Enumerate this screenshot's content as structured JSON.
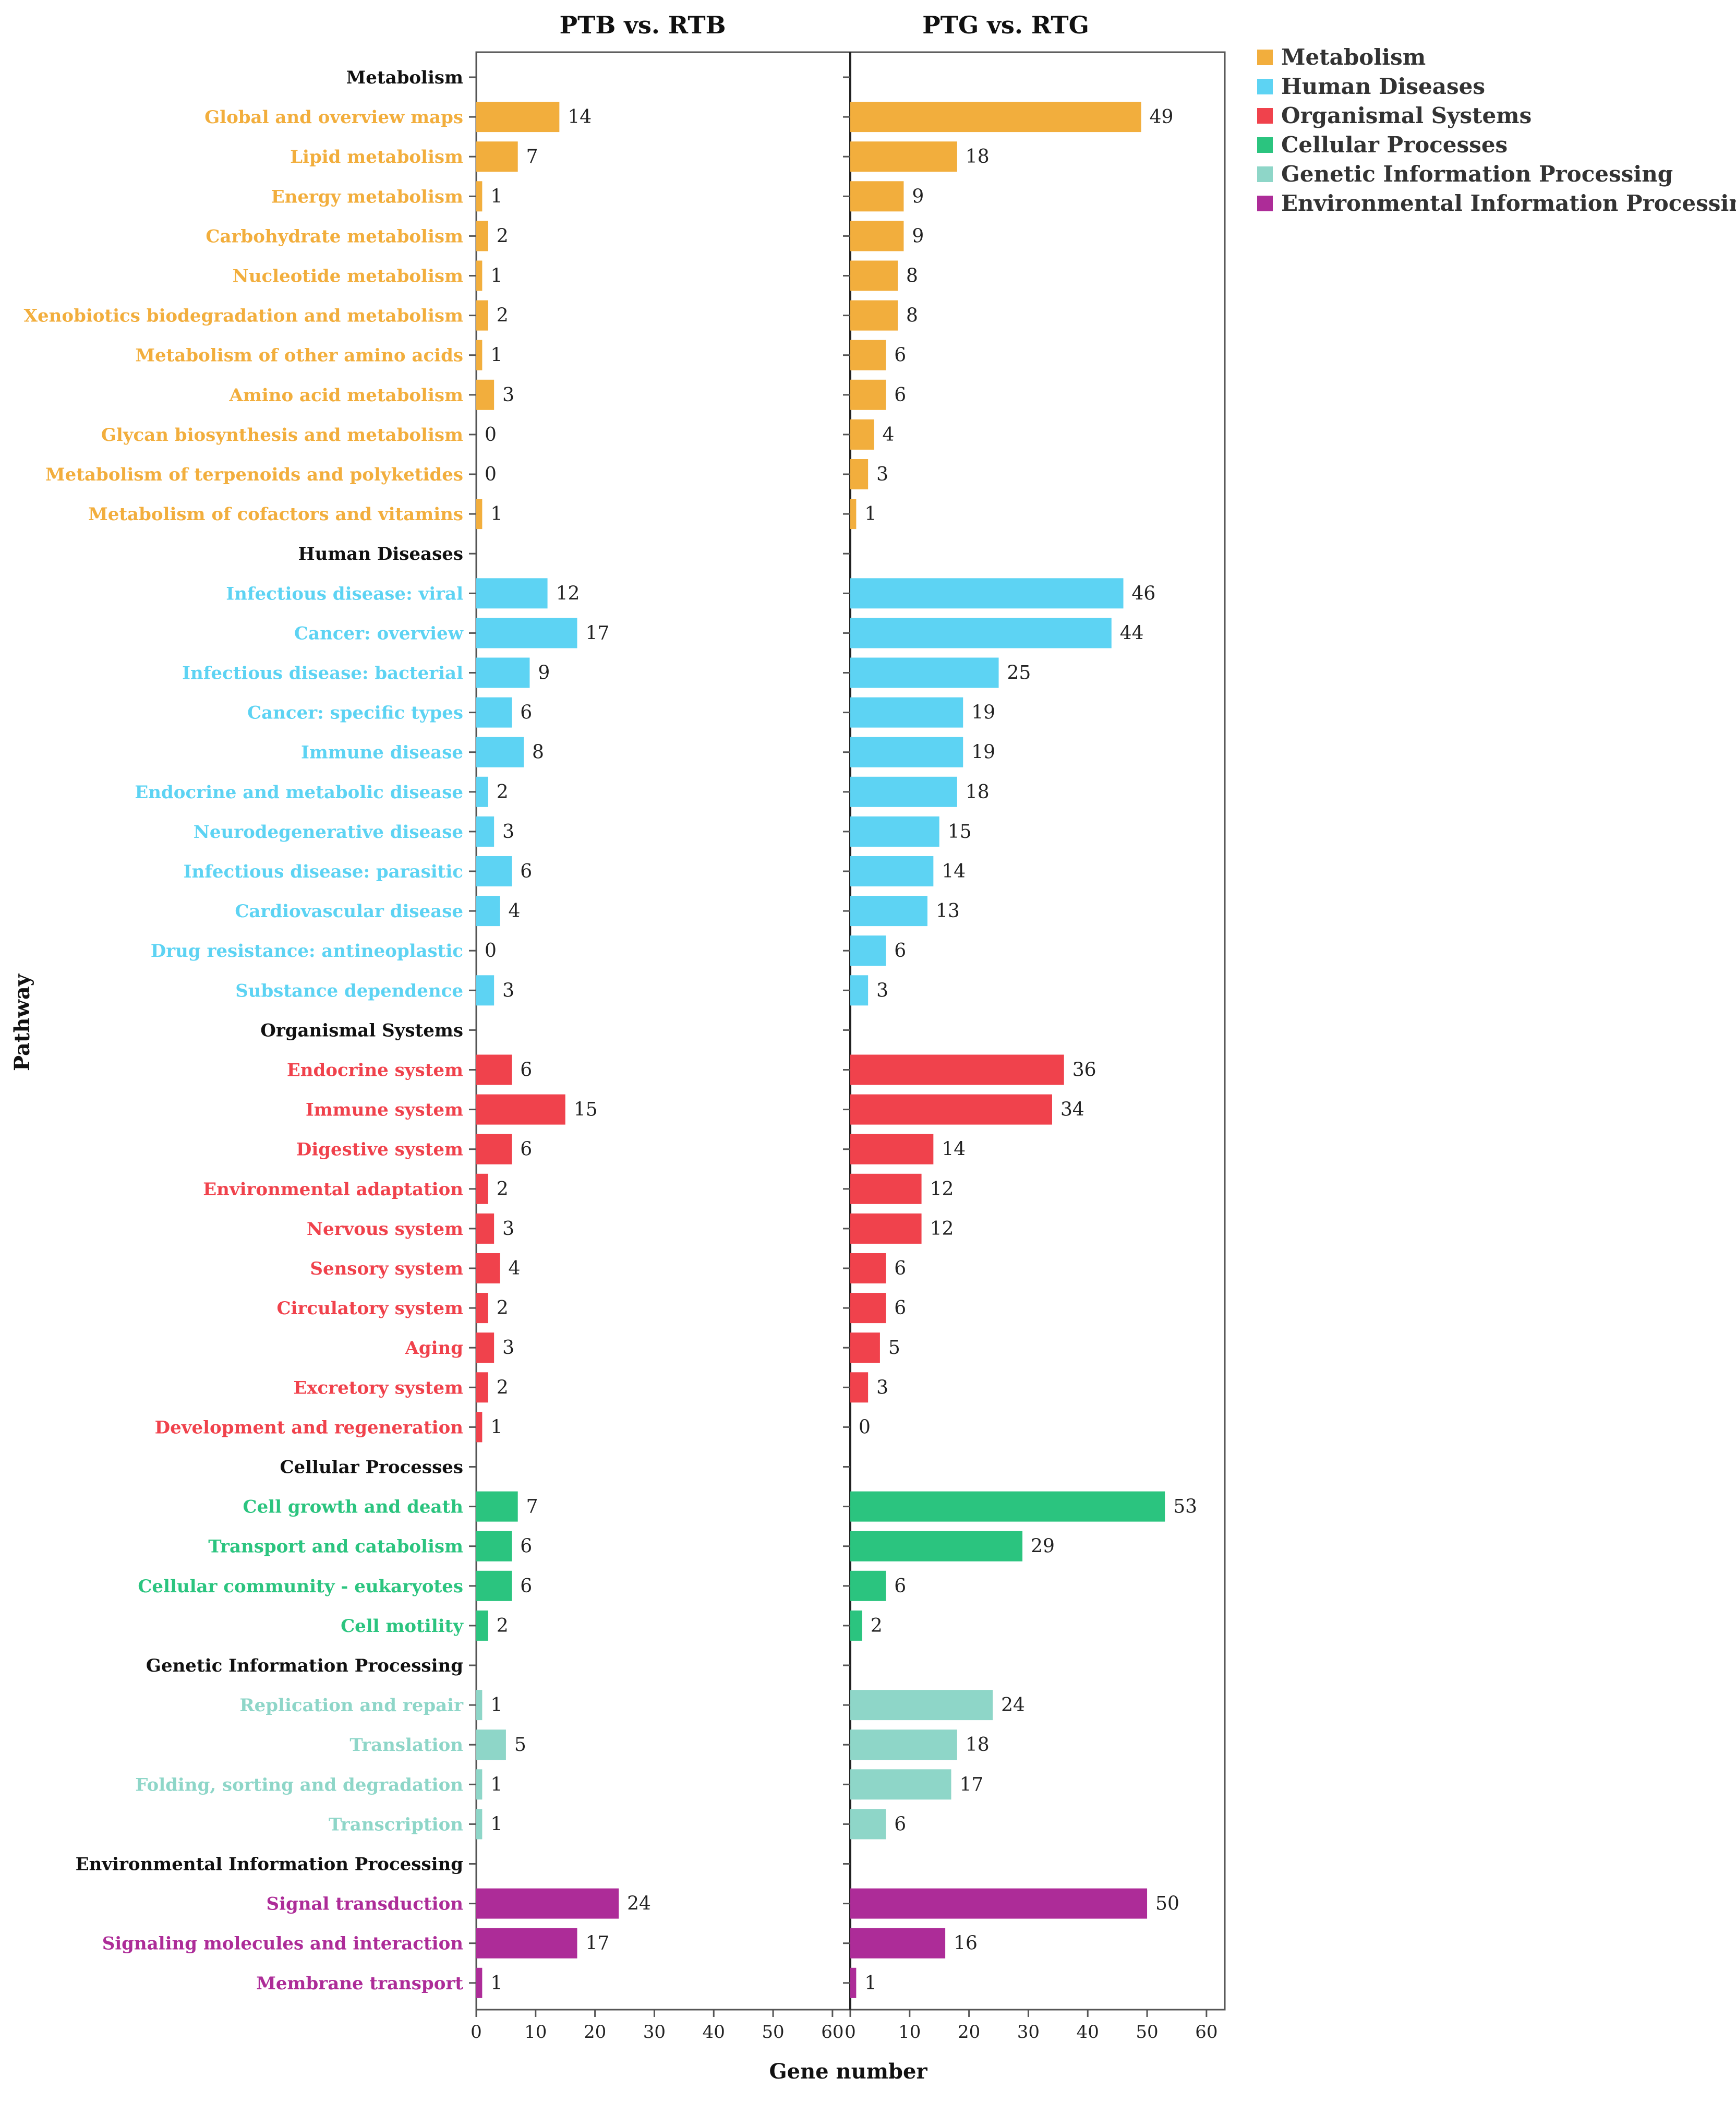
{
  "chart_data": {
    "type": "bar",
    "orientation": "horizontal",
    "panels": [
      {
        "title": "PTB vs. RTB",
        "series_key": "PTB"
      },
      {
        "title": "PTG vs. RTG",
        "series_key": "PTG"
      }
    ],
    "xlabel": "Gene number",
    "ylabel": "Pathway",
    "xlim": [
      0,
      63
    ],
    "xticks": [
      0,
      10,
      20,
      30,
      40,
      50,
      60
    ],
    "xtick_labels": [
      "0",
      "10",
      "20",
      "30",
      "40",
      "50",
      "60"
    ],
    "legend_position": "top-right",
    "groups": [
      {
        "name": "Metabolism",
        "color": "#f2ae3d",
        "categories": [
          {
            "label": "Global and overview maps",
            "PTB": 14,
            "PTG": 49
          },
          {
            "label": "Lipid metabolism",
            "PTB": 7,
            "PTG": 18
          },
          {
            "label": "Energy metabolism",
            "PTB": 1,
            "PTG": 9
          },
          {
            "label": "Carbohydrate metabolism",
            "PTB": 2,
            "PTG": 9
          },
          {
            "label": "Nucleotide metabolism",
            "PTB": 1,
            "PTG": 8
          },
          {
            "label": "Xenobiotics biodegradation and metabolism",
            "PTB": 2,
            "PTG": 8
          },
          {
            "label": "Metabolism of other amino acids",
            "PTB": 1,
            "PTG": 6
          },
          {
            "label": "Amino acid metabolism",
            "PTB": 3,
            "PTG": 6
          },
          {
            "label": "Glycan biosynthesis and metabolism",
            "PTB": 0,
            "PTG": 4
          },
          {
            "label": "Metabolism of terpenoids and polyketides",
            "PTB": 0,
            "PTG": 3
          },
          {
            "label": "Metabolism of cofactors and vitamins",
            "PTB": 1,
            "PTG": 1
          }
        ]
      },
      {
        "name": "Human Diseases",
        "color": "#5dd3f3",
        "categories": [
          {
            "label": "Infectious disease: viral",
            "PTB": 12,
            "PTG": 46
          },
          {
            "label": "Cancer: overview",
            "PTB": 17,
            "PTG": 44
          },
          {
            "label": "Infectious disease: bacterial",
            "PTB": 9,
            "PTG": 25
          },
          {
            "label": "Cancer: specific types",
            "PTB": 6,
            "PTG": 19
          },
          {
            "label": "Immune disease",
            "PTB": 8,
            "PTG": 19
          },
          {
            "label": "Endocrine and metabolic disease",
            "PTB": 2,
            "PTG": 18
          },
          {
            "label": "Neurodegenerative disease",
            "PTB": 3,
            "PTG": 15
          },
          {
            "label": "Infectious disease: parasitic",
            "PTB": 6,
            "PTG": 14
          },
          {
            "label": "Cardiovascular disease",
            "PTB": 4,
            "PTG": 13
          },
          {
            "label": "Drug resistance: antineoplastic",
            "PTB": 0,
            "PTG": 6
          },
          {
            "label": "Substance dependence",
            "PTB": 3,
            "PTG": 3
          }
        ]
      },
      {
        "name": "Organismal Systems",
        "color": "#f0424c",
        "categories": [
          {
            "label": "Endocrine system",
            "PTB": 6,
            "PTG": 36
          },
          {
            "label": "Immune system",
            "PTB": 15,
            "PTG": 34
          },
          {
            "label": "Digestive system",
            "PTB": 6,
            "PTG": 14
          },
          {
            "label": "Environmental adaptation",
            "PTB": 2,
            "PTG": 12
          },
          {
            "label": "Nervous system",
            "PTB": 3,
            "PTG": 12
          },
          {
            "label": "Sensory system",
            "PTB": 4,
            "PTG": 6
          },
          {
            "label": "Circulatory system",
            "PTB": 2,
            "PTG": 6
          },
          {
            "label": "Aging",
            "PTB": 3,
            "PTG": 5
          },
          {
            "label": "Excretory system",
            "PTB": 2,
            "PTG": 3
          },
          {
            "label": "Development and regeneration",
            "PTB": 1,
            "PTG": 0
          }
        ]
      },
      {
        "name": "Cellular Processes",
        "color": "#2bc47f",
        "categories": [
          {
            "label": "Cell growth and death",
            "PTB": 7,
            "PTG": 53
          },
          {
            "label": "Transport and catabolism",
            "PTB": 6,
            "PTG": 29
          },
          {
            "label": "Cellular community - eukaryotes",
            "PTB": 6,
            "PTG": 6
          },
          {
            "label": "Cell motility",
            "PTB": 2,
            "PTG": 2
          }
        ]
      },
      {
        "name": "Genetic Information Processing",
        "color": "#8ed6c8",
        "categories": [
          {
            "label": "Replication and repair",
            "PTB": 1,
            "PTG": 24
          },
          {
            "label": "Translation",
            "PTB": 5,
            "PTG": 18
          },
          {
            "label": "Folding, sorting and degradation",
            "PTB": 1,
            "PTG": 17
          },
          {
            "label": "Transcription",
            "PTB": 1,
            "PTG": 6
          }
        ]
      },
      {
        "name": "Environmental Information Processing",
        "color": "#ad2c98",
        "categories": [
          {
            "label": "Signal transduction",
            "PTB": 24,
            "PTG": 50
          },
          {
            "label": "Signaling molecules and interaction",
            "PTB": 17,
            "PTG": 16
          },
          {
            "label": "Membrane transport",
            "PTB": 1,
            "PTG": 1
          }
        ]
      }
    ],
    "legend": [
      {
        "name": "Metabolism",
        "color": "#f2ae3d"
      },
      {
        "name": "Human Diseases",
        "color": "#5dd3f3"
      },
      {
        "name": "Organismal Systems",
        "color": "#f0424c"
      },
      {
        "name": "Cellular Processes",
        "color": "#2bc47f"
      },
      {
        "name": "Genetic Information Processing",
        "color": "#8ed6c8"
      },
      {
        "name": "Environmental Information Processing",
        "color": "#ad2c98"
      }
    ]
  }
}
